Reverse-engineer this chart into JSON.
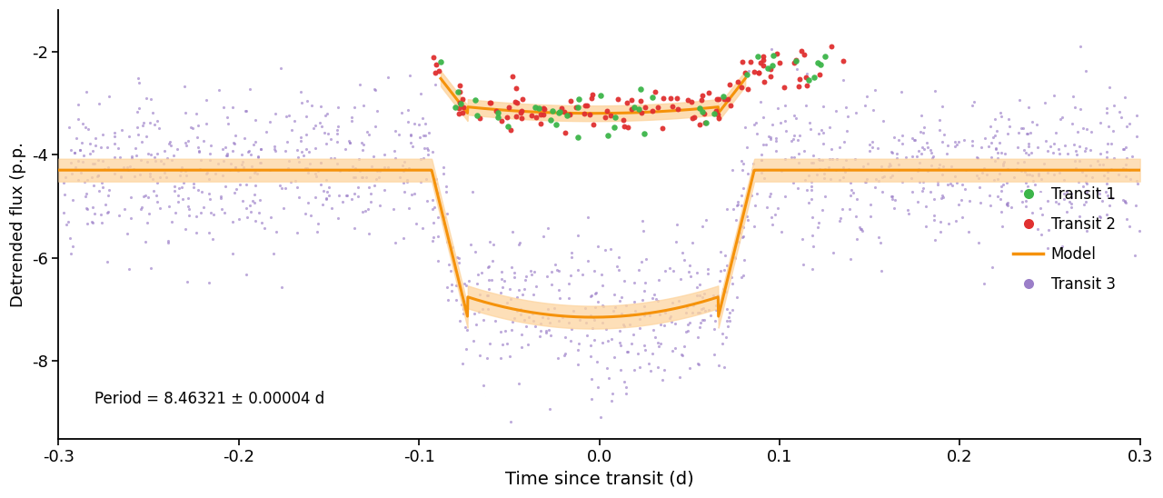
{
  "xlim": [
    -0.3,
    0.3
  ],
  "ylim": [
    -9.5,
    -1.2
  ],
  "yticks": [
    -2,
    -4,
    -6,
    -8
  ],
  "xticks": [
    -0.3,
    -0.2,
    -0.1,
    0.0,
    0.1,
    0.2,
    0.3
  ],
  "xlabel": "Time since transit (d)",
  "ylabel": "Detrended flux (p.p.",
  "period_text": "Period = 8.46321 ± 0.00004 d",
  "transit1_color": "#3cb54a",
  "transit2_color": "#e03030",
  "transit3_color": "#9b7ec8",
  "model_color": "#f5920a",
  "model_fill_color": "#fdd5a0",
  "background_color": "#ffffff",
  "spitzer_ingress": -0.083,
  "spitzer_egress": 0.076,
  "spitzer_depth": -7.15,
  "spitzer_out": -4.3,
  "tess_ingress": -0.083,
  "tess_egress": 0.076,
  "tess_depth": -3.2,
  "tess_out": -2.3,
  "transit3_scatter": 0.75,
  "n_transit1": 45,
  "n_transit2": 120,
  "n_transit3": 1400,
  "seed": 42
}
